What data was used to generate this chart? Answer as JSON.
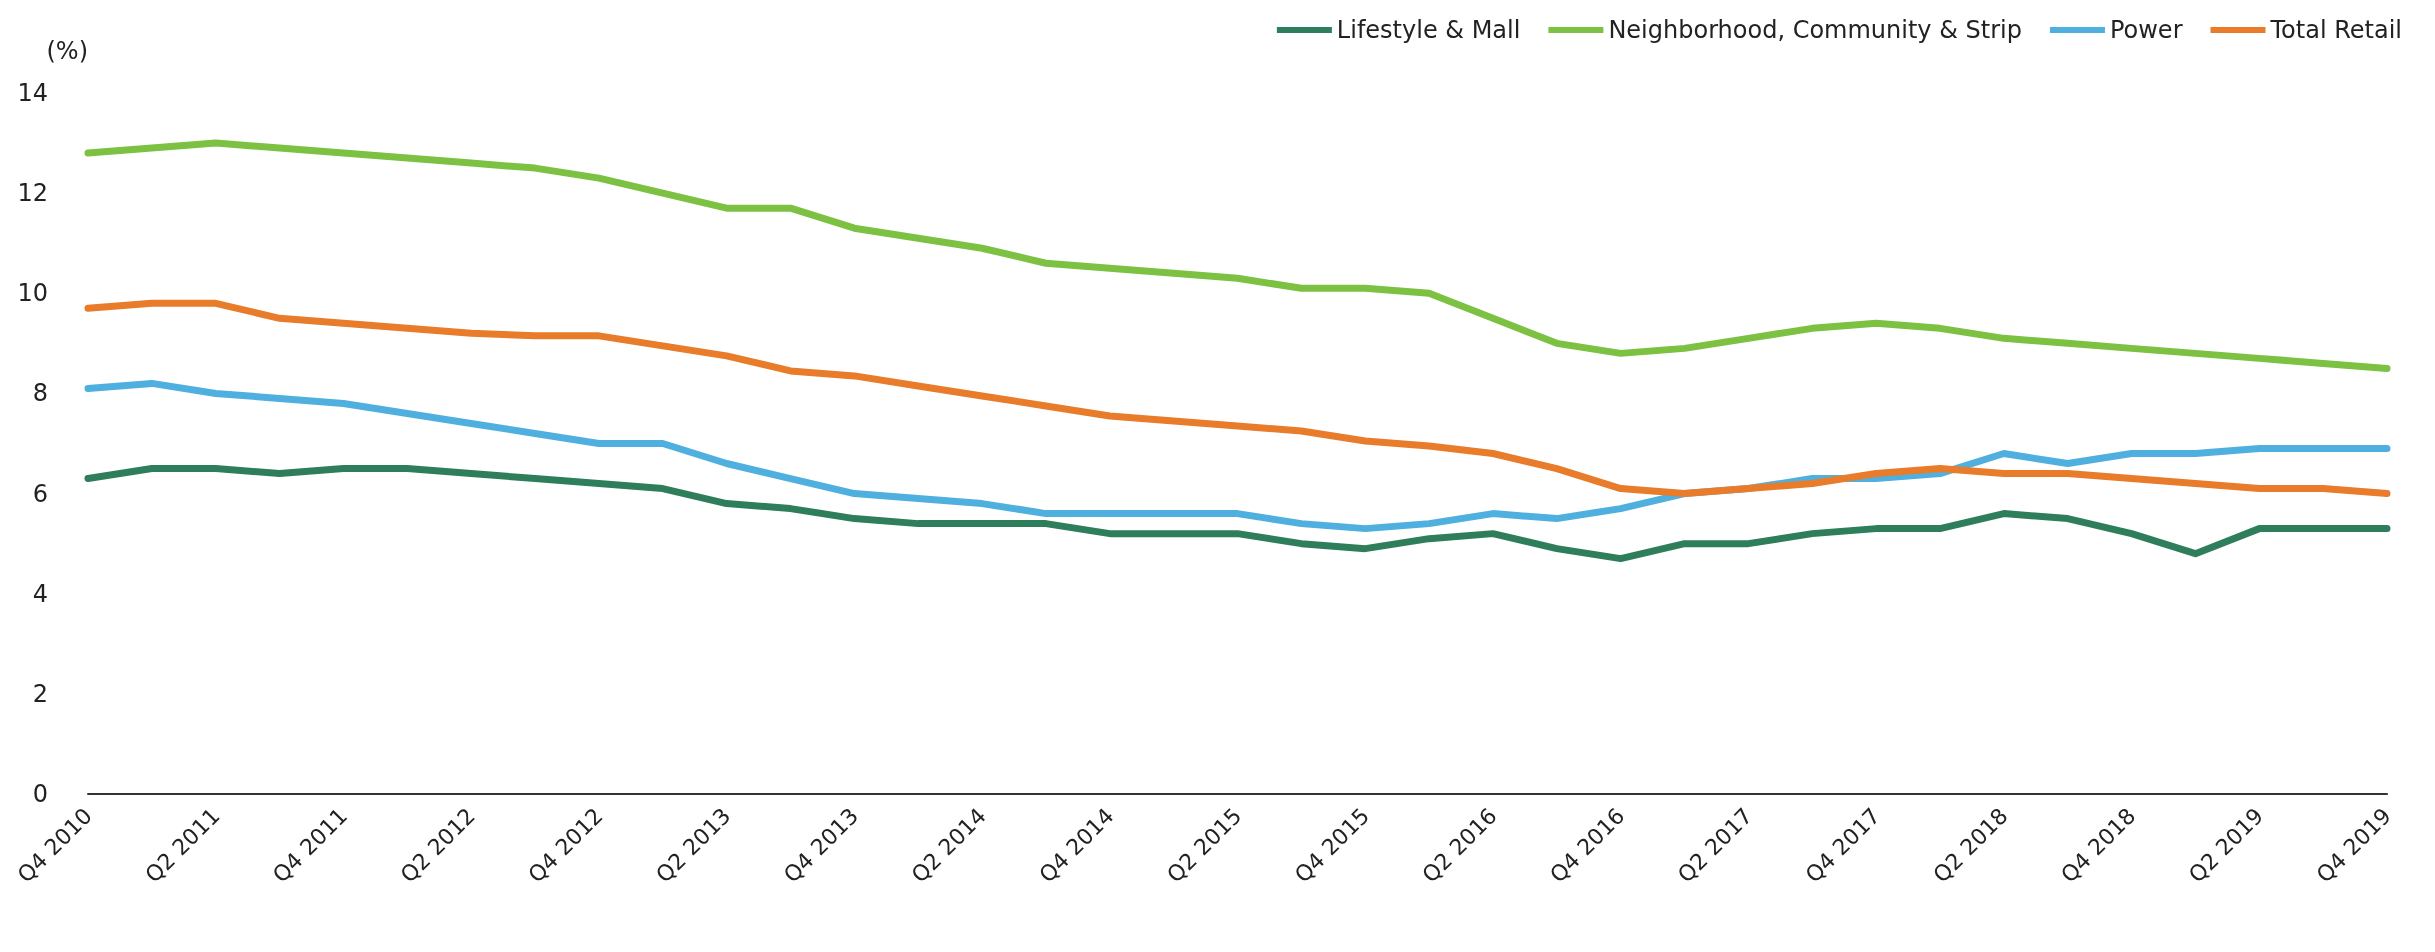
{
  "chart_data": {
    "type": "line",
    "ylabel": "(%)",
    "categories": [
      "Q4 2010",
      null,
      "Q2 2011",
      null,
      "Q4 2011",
      null,
      "Q2 2012",
      null,
      "Q4 2012",
      null,
      "Q2 2013",
      null,
      "Q4 2013",
      null,
      "Q2 2014",
      null,
      "Q4 2014",
      null,
      "Q2 2015",
      null,
      "Q4 2015",
      null,
      "Q2 2016",
      null,
      "Q4 2016",
      null,
      "Q2 2017",
      null,
      "Q4 2017",
      null,
      "Q2 2018",
      null,
      "Q4 2018",
      null,
      "Q2 2019",
      null,
      "Q4 2019"
    ],
    "ylim": [
      0,
      14
    ],
    "yticks": [
      0,
      2,
      4,
      6,
      8,
      10,
      12,
      14
    ],
    "grid": false,
    "legend": "top right",
    "marker": "none",
    "line_style": "solid",
    "series": [
      {
        "name": "Lifestyle & Mall",
        "color": "#2e7d5b",
        "values": [
          6.3,
          6.5,
          6.5,
          6.4,
          6.5,
          6.5,
          6.4,
          6.3,
          6.2,
          6.1,
          5.8,
          5.7,
          5.5,
          5.4,
          5.4,
          5.4,
          5.2,
          5.2,
          5.2,
          5.0,
          4.9,
          5.1,
          5.2,
          4.9,
          4.7,
          5.0,
          5.0,
          5.2,
          5.3,
          5.3,
          5.6,
          5.5,
          5.2,
          4.8,
          5.3,
          5.3,
          5.3
        ]
      },
      {
        "name": "Neighborhood, Community & Strip",
        "color": "#7cc142",
        "values": [
          12.8,
          12.9,
          13.0,
          12.9,
          12.8,
          12.7,
          12.6,
          12.5,
          12.3,
          12.0,
          11.7,
          11.7,
          11.3,
          11.1,
          10.9,
          10.6,
          10.5,
          10.4,
          10.3,
          10.1,
          10.1,
          10.0,
          9.5,
          9.0,
          8.8,
          8.9,
          9.1,
          9.3,
          9.4,
          9.3,
          9.1,
          9.0,
          8.9,
          8.8,
          8.7,
          8.6,
          8.5
        ]
      },
      {
        "name": "Power",
        "color": "#4fb0e0",
        "values": [
          8.1,
          8.2,
          8.0,
          7.9,
          7.8,
          7.6,
          7.4,
          7.2,
          7.0,
          7.0,
          6.6,
          6.3,
          6.0,
          5.9,
          5.8,
          5.6,
          5.6,
          5.6,
          5.6,
          5.4,
          5.3,
          5.4,
          5.6,
          5.5,
          5.7,
          6.0,
          6.1,
          6.3,
          6.3,
          6.4,
          6.8,
          6.6,
          6.8,
          6.8,
          6.9,
          6.9,
          6.9
        ]
      },
      {
        "name": "Total Retail",
        "color": "#e87c2a",
        "values": [
          9.7,
          9.8,
          9.8,
          9.5,
          9.4,
          9.3,
          9.2,
          9.15,
          9.15,
          8.95,
          8.75,
          8.45,
          8.35,
          8.15,
          7.95,
          7.75,
          7.55,
          7.45,
          7.35,
          7.25,
          7.05,
          6.95,
          6.8,
          6.5,
          6.1,
          6.0,
          6.1,
          6.2,
          6.4,
          6.5,
          6.4,
          6.4,
          6.3,
          6.2,
          6.1,
          6.1,
          6.0
        ]
      }
    ]
  }
}
